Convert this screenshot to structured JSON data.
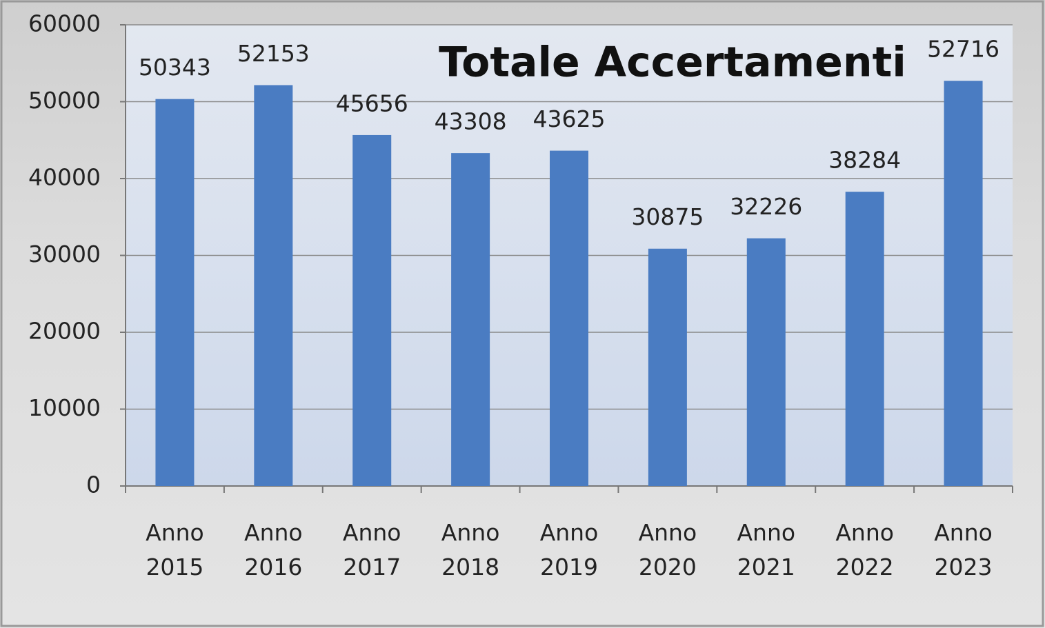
{
  "chart_data": {
    "type": "bar",
    "title": "Totale Accertamenti",
    "categories": [
      "Anno 2015",
      "Anno 2016",
      "Anno 2017",
      "Anno 2018",
      "Anno 2019",
      "Anno 2020",
      "Anno 2021",
      "Anno 2022",
      "Anno 2023"
    ],
    "values": [
      50343,
      52153,
      45656,
      43308,
      43625,
      30875,
      32226,
      38284,
      52716
    ],
    "color": "#4a7cc2",
    "ylim": [
      0,
      60000
    ],
    "yticks": [
      0,
      10000,
      20000,
      30000,
      40000,
      50000,
      60000
    ],
    "grid": true
  }
}
